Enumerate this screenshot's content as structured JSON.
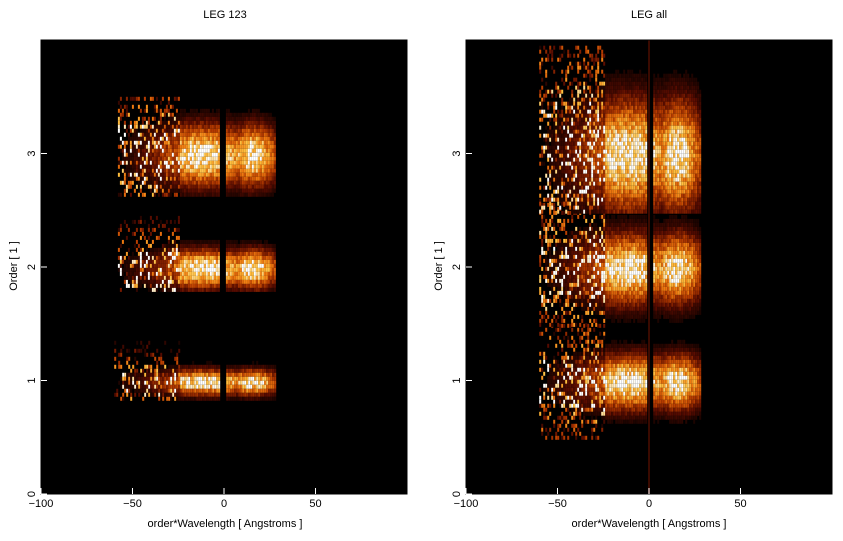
{
  "chart_data": [
    {
      "type": "heatmap",
      "title": "LEG 123",
      "xlabel": "order*Wavelength [ Angstroms ]",
      "ylabel": "Order [ 1 ]",
      "xlim": [
        -100,
        100
      ],
      "ylim": [
        0,
        4
      ],
      "xticks": [
        -100,
        -50,
        0,
        50
      ],
      "yticks": [
        0,
        1,
        2,
        3
      ],
      "background_color": "#000000",
      "colormap": [
        "#000000",
        "#5a0c00",
        "#b43a00",
        "#f07a10",
        "#ffc040",
        "#ffffff"
      ],
      "bands": [
        {
          "order": 1,
          "y_range": [
            0.85,
            1.35
          ],
          "x_range": [
            -60,
            28
          ],
          "gap": [
            -3,
            1
          ],
          "peak_x": -12,
          "width": 0.2
        },
        {
          "order": 2,
          "y_range": [
            1.8,
            2.45
          ],
          "x_range": [
            -58,
            28
          ],
          "gap": [
            -3,
            1
          ],
          "peak_x": -12,
          "width": 0.3
        },
        {
          "order": 3,
          "y_range": [
            2.65,
            3.5
          ],
          "x_range": [
            -58,
            28
          ],
          "gap": [
            -3,
            1
          ],
          "peak_x": -12,
          "width": 0.45
        }
      ]
    },
    {
      "type": "heatmap",
      "title": "LEG all",
      "xlabel": "order*Wavelength [ Angstroms ]",
      "ylabel": "Order [ 1 ]",
      "xlim": [
        -100,
        100
      ],
      "ylim": [
        0,
        4
      ],
      "xticks": [
        -100,
        -50,
        0,
        50
      ],
      "yticks": [
        0,
        1,
        2,
        3
      ],
      "background_color": "#000000",
      "colormap": [
        "#000000",
        "#5a0c00",
        "#b43a00",
        "#f07a10",
        "#ffc040",
        "#ffffff"
      ],
      "bands": [
        {
          "order": 1,
          "y_range": [
            0.5,
            1.5
          ],
          "x_range": [
            -60,
            28
          ],
          "gap": [
            -1,
            2
          ],
          "peak_x": -12,
          "width": 0.25
        },
        {
          "order": 2,
          "y_range": [
            1.5,
            2.6
          ],
          "x_range": [
            -60,
            28
          ],
          "gap": [
            -1,
            2
          ],
          "peak_x": -12,
          "width": 0.35
        },
        {
          "order": 3,
          "y_range": [
            2.5,
            3.95
          ],
          "x_range": [
            -60,
            28
          ],
          "gap": [
            -1,
            2
          ],
          "peak_x": -12,
          "width": 0.5
        }
      ]
    }
  ]
}
